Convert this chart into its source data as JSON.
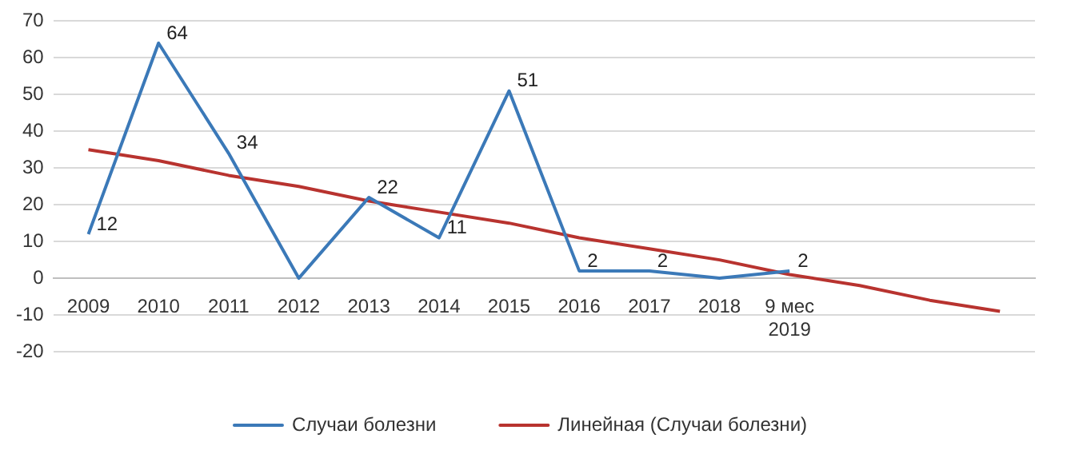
{
  "chart_data": {
    "type": "line",
    "categories": [
      "2009",
      "2010",
      "2011",
      "2012",
      "2013",
      "2014",
      "2015",
      "2016",
      "2017",
      "2018",
      "9 мес 2019",
      null,
      null,
      null
    ],
    "series": [
      {
        "name": "Случаи болезни",
        "color": "#3b79b8",
        "values": [
          12,
          64,
          34,
          0,
          22,
          11,
          51,
          2,
          2,
          0,
          2,
          null,
          null,
          null
        ],
        "value_labels": [
          "12",
          "64",
          "34",
          null,
          "22",
          "11",
          "51",
          "2",
          "2",
          null,
          "2",
          null,
          null,
          null
        ]
      },
      {
        "name": "Линейная (Случаи болезни)",
        "color": "#b8332f",
        "values": [
          35,
          32,
          28,
          25,
          21,
          18,
          15,
          11,
          8,
          5,
          1,
          -2,
          -6,
          -9
        ]
      }
    ],
    "ylim": [
      -20,
      70
    ],
    "yticks": [
      -20,
      -10,
      0,
      10,
      20,
      30,
      40,
      50,
      60,
      70
    ],
    "grid": "y",
    "legend": "bottom",
    "marker": "none",
    "line_style": "solid"
  }
}
